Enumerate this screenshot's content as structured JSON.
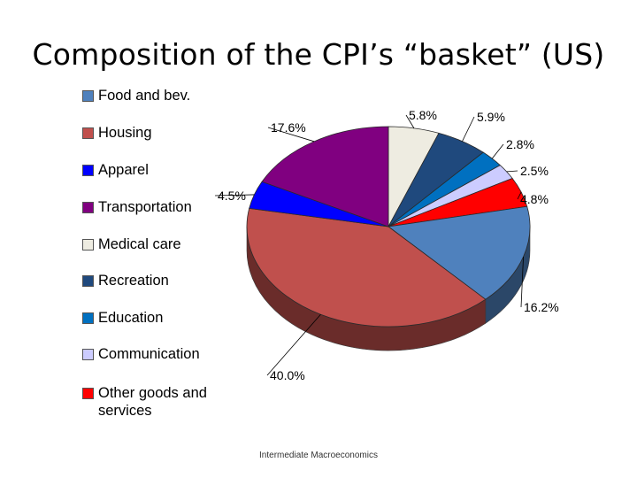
{
  "slide": {
    "title": "Composition of the CPI’s “basket” (US)",
    "footer": "Intermediate Macroeconomics"
  },
  "chart_data": {
    "type": "pie",
    "title": "",
    "legend_position": "left",
    "slices": [
      {
        "label": "Food and bev.",
        "value": 16.2,
        "value_label": "16.2%",
        "color": "#4F81BD"
      },
      {
        "label": "Housing",
        "value": 40.0,
        "value_label": "40.0%",
        "color": "#C0504D"
      },
      {
        "label": "Apparel",
        "value": 4.5,
        "value_label": "4.5%",
        "color": "#0000FF"
      },
      {
        "label": "Transportation",
        "value": 17.6,
        "value_label": "17.6%",
        "color": "#800080"
      },
      {
        "label": "Medical care",
        "value": 5.8,
        "value_label": "5.8%",
        "color": "#EEECE1"
      },
      {
        "label": "Recreation",
        "value": 5.9,
        "value_label": "5.9%",
        "color": "#1F497D"
      },
      {
        "label": "Education",
        "value": 2.8,
        "value_label": "2.8%",
        "color": "#0070C0"
      },
      {
        "label": "Communication",
        "value": 2.5,
        "value_label": "2.5%",
        "color": "#CCCCFF"
      },
      {
        "label": "Other goods and services",
        "value": 4.8,
        "value_label": "4.8%",
        "color": "#FF0000"
      }
    ]
  }
}
